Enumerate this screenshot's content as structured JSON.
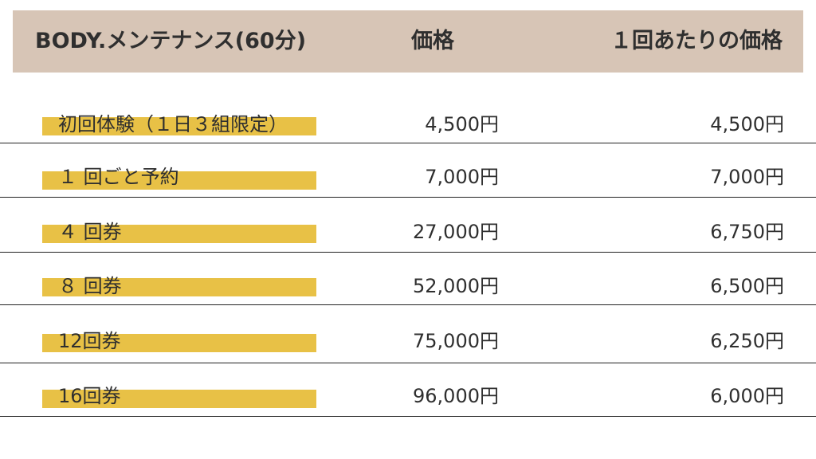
{
  "header": {
    "plan_label": "BODY.メンテナンス(60分)",
    "price_label": "価格",
    "unit_price_label": "１回あたりの価格"
  },
  "rows": [
    {
      "plan": "初回体験（１日３組限定）",
      "price": "4,500円",
      "unit_price": "4,500円"
    },
    {
      "plan": "１ 回ごと予約",
      "price": "7,000円",
      "unit_price": "7,000円"
    },
    {
      "plan": "４ 回券",
      "price": "27,000円",
      "unit_price": "6,750円"
    },
    {
      "plan": "８ 回券",
      "price": "52,000円",
      "unit_price": "6,500円"
    },
    {
      "plan": "12回券",
      "price": "75,000円",
      "unit_price": "6,250円"
    },
    {
      "plan": "16回券",
      "price": "96,000円",
      "unit_price": "6,000円"
    }
  ],
  "colors": {
    "header_bg": "#d7c5b6",
    "highlight": "#e8c146",
    "divider": "#222222"
  }
}
